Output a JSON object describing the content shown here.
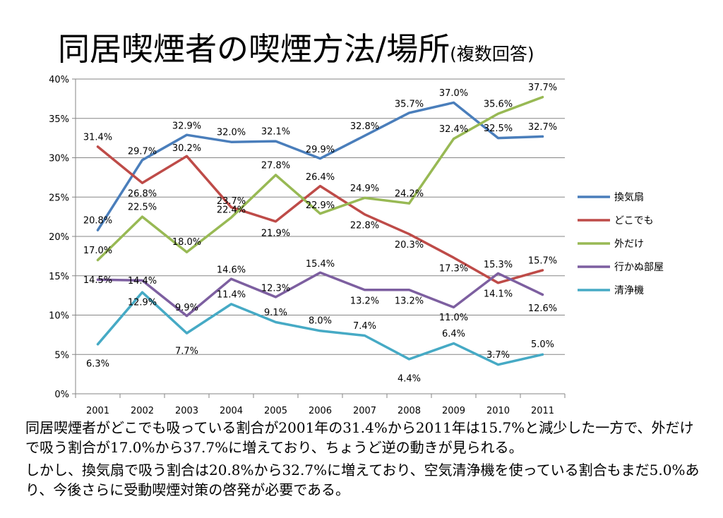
{
  "title": {
    "main": "同居喫煙者の喫煙方法/場所",
    "sub": "(複数回答)"
  },
  "caption": {
    "p1": "同居喫煙者がどこでも吸っている割合が2001年の31.4%から2011年は15.7%と減少した一方で、外だけで吸う割合が17.0%から37.7%に増えており、ちょうど逆の動きが見られる。",
    "p2": "しかし、換気扇で吸う割合は20.8%から32.7%に増えており、空気清浄機を使っている割合もまだ5.0%あり、今後さらに受動喫煙対策の啓発が必要である。"
  },
  "chart_data": {
    "type": "line",
    "categories": [
      "2001",
      "2002",
      "2003",
      "2004",
      "2005",
      "2006",
      "2007",
      "2008",
      "2009",
      "2010",
      "2011"
    ],
    "ylim": [
      0,
      40
    ],
    "yticks": [
      "0%",
      "5%",
      "10%",
      "15%",
      "20%",
      "25%",
      "30%",
      "35%",
      "40%"
    ],
    "grid": true,
    "legend": "right",
    "series": [
      {
        "name": "換気扇",
        "color": "#4a7ebb",
        "values": [
          20.8,
          29.7,
          32.9,
          32.0,
          32.1,
          29.9,
          32.8,
          35.7,
          37.0,
          32.5,
          32.7
        ],
        "labels": [
          "20.8%",
          "29.7%",
          "32.9%",
          "32.0%",
          "32.1%",
          "29.9%",
          "32.8%",
          "35.7%",
          "37.0%",
          "32.5%",
          "32.7%"
        ]
      },
      {
        "name": "どこでも",
        "color": "#be4b48",
        "values": [
          31.4,
          26.8,
          30.2,
          23.7,
          21.9,
          26.4,
          22.8,
          20.3,
          17.3,
          14.1,
          15.7
        ],
        "labels": [
          "31.4%",
          "26.8%",
          "30.2%",
          "23.7%",
          "21.9%",
          "26.4%",
          "22.8%",
          "20.3%",
          "17.3%",
          "14.1%",
          "15.7%"
        ]
      },
      {
        "name": "外だけ",
        "color": "#98b954",
        "values": [
          17.0,
          22.5,
          18.0,
          22.4,
          27.8,
          22.9,
          24.9,
          24.2,
          32.4,
          35.6,
          37.7
        ],
        "labels": [
          "17.0%",
          "22.5%",
          "18.0%",
          "22.4%",
          "27.8%",
          "22.9%",
          "24.9%",
          "24.2%",
          "32.4%",
          "35.6%",
          "37.7%"
        ]
      },
      {
        "name": "行かぬ部屋",
        "color": "#7d5fa0",
        "values": [
          14.5,
          14.4,
          9.9,
          14.6,
          12.3,
          15.4,
          13.2,
          13.2,
          11.0,
          15.3,
          12.6
        ],
        "labels": [
          "14.5%",
          "14.4%",
          "9.9%",
          "14.6%",
          "12.3%",
          "15.4%",
          "13.2%",
          "13.2%",
          "11.0%",
          "15.3%",
          "12.6%"
        ]
      },
      {
        "name": "清浄機",
        "color": "#46aac5",
        "values": [
          6.3,
          12.9,
          7.7,
          11.4,
          9.1,
          8.0,
          7.4,
          4.4,
          6.4,
          3.7,
          5.0
        ],
        "labels": [
          "6.3%",
          "12.9%",
          "7.7%",
          "11.4%",
          "9.1%",
          "8.0%",
          "7.4%",
          "4.4%",
          "6.4%",
          "3.7%",
          "5.0%"
        ]
      }
    ]
  }
}
